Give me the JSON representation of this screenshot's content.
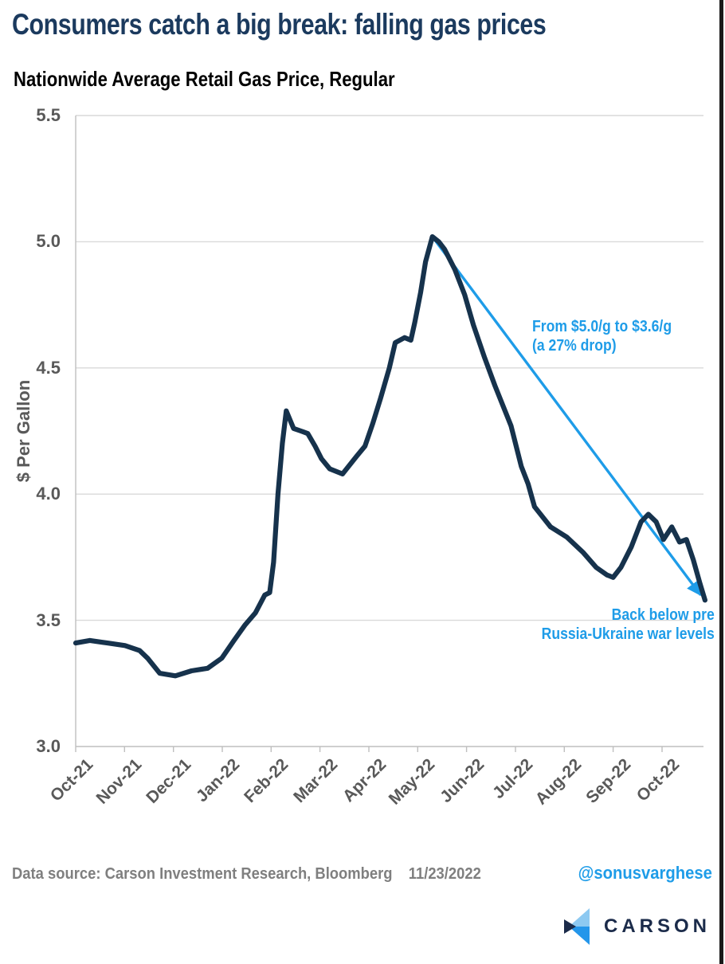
{
  "title": "Consumers catch a big break: falling gas prices",
  "subtitle": "Nationwide Average Retail Gas Price, Regular",
  "annotations": {
    "drop_line1": "From $5.0/g to $3.6/g",
    "drop_line2": "(a 27% drop)",
    "war_line1": "Back below pre",
    "war_line2": "Russia-Ukraine war levels"
  },
  "footer": {
    "source": "Data source: Carson Investment Research, Bloomberg",
    "date": "11/23/2022",
    "handle": "@sonusvarghese",
    "logo_text": "CARSON"
  },
  "colors": {
    "title_navy": "#1b3a5e",
    "line_navy": "#16324c",
    "accent_blue": "#1e9ce8",
    "axis_text_gray": "#595959",
    "footer_gray": "#7f7f7f",
    "grid_gray": "#d9d9d9",
    "axis_line_gray": "#bfbfbf",
    "logo_navy": "#1b2b4a",
    "logo_light_blue": "#8dc9f1",
    "logo_mid_blue": "#2496ea",
    "frame_black": "#1a1a1a"
  },
  "chart_data": {
    "type": "line",
    "title": "Nationwide Average Retail Gas Price, Regular",
    "xlabel": "",
    "ylabel": "$ Per Gallon",
    "ylim": [
      3.0,
      5.5
    ],
    "yticks": [
      5.5,
      5.0,
      4.5,
      4.0,
      3.5,
      3.0
    ],
    "xticklabels": [
      "Oct-21",
      "Nov-21",
      "Dec-21",
      "Jan-22",
      "Feb-22",
      "Mar-22",
      "Apr-22",
      "May-22",
      "Jun-22",
      "Jul-22",
      "Aug-22",
      "Sep-22",
      "Oct-22"
    ],
    "grid": "horizontal",
    "legend": "none",
    "x_unit": "months since Oct-21 tick",
    "series": [
      {
        "name": "Nationwide Average Retail Gas Price, Regular ($/gal)",
        "points": [
          [
            0,
            3.41
          ],
          [
            0.29,
            3.42
          ],
          [
            0.65,
            3.41
          ],
          [
            1.01,
            3.4
          ],
          [
            1.31,
            3.38
          ],
          [
            1.47,
            3.35
          ],
          [
            1.72,
            3.29
          ],
          [
            2.04,
            3.28
          ],
          [
            2.37,
            3.3
          ],
          [
            2.7,
            3.31
          ],
          [
            2.99,
            3.35
          ],
          [
            3.24,
            3.42
          ],
          [
            3.46,
            3.48
          ],
          [
            3.68,
            3.53
          ],
          [
            3.87,
            3.6
          ],
          [
            3.97,
            3.61
          ],
          [
            4.05,
            3.73
          ],
          [
            4.14,
            4.0
          ],
          [
            4.23,
            4.2
          ],
          [
            4.31,
            4.33
          ],
          [
            4.46,
            4.26
          ],
          [
            4.61,
            4.25
          ],
          [
            4.75,
            4.24
          ],
          [
            4.9,
            4.19
          ],
          [
            5.03,
            4.14
          ],
          [
            5.2,
            4.1
          ],
          [
            5.46,
            4.08
          ],
          [
            5.75,
            4.15
          ],
          [
            5.92,
            4.19
          ],
          [
            6.08,
            4.28
          ],
          [
            6.24,
            4.38
          ],
          [
            6.42,
            4.5
          ],
          [
            6.54,
            4.6
          ],
          [
            6.73,
            4.62
          ],
          [
            6.86,
            4.61
          ],
          [
            6.94,
            4.68
          ],
          [
            7.06,
            4.8
          ],
          [
            7.16,
            4.92
          ],
          [
            7.3,
            5.02
          ],
          [
            7.43,
            5.0
          ],
          [
            7.55,
            4.97
          ],
          [
            7.76,
            4.89
          ],
          [
            7.96,
            4.79
          ],
          [
            8.14,
            4.67
          ],
          [
            8.37,
            4.54
          ],
          [
            8.58,
            4.43
          ],
          [
            8.91,
            4.27
          ],
          [
            9.12,
            4.11
          ],
          [
            9.26,
            4.04
          ],
          [
            9.39,
            3.95
          ],
          [
            9.72,
            3.87
          ],
          [
            10.05,
            3.83
          ],
          [
            10.38,
            3.77
          ],
          [
            10.65,
            3.71
          ],
          [
            10.87,
            3.68
          ],
          [
            11.0,
            3.67
          ],
          [
            11.16,
            3.71
          ],
          [
            11.37,
            3.79
          ],
          [
            11.57,
            3.89
          ],
          [
            11.72,
            3.92
          ],
          [
            11.88,
            3.89
          ],
          [
            12.03,
            3.82
          ],
          [
            12.2,
            3.87
          ],
          [
            12.36,
            3.81
          ],
          [
            12.5,
            3.82
          ],
          [
            12.64,
            3.74
          ],
          [
            12.77,
            3.65
          ],
          [
            12.88,
            3.58
          ]
        ]
      }
    ],
    "trend_arrow": {
      "x1": 7.3,
      "y1": 5.02,
      "x2": 12.79,
      "y2": 3.6
    }
  }
}
